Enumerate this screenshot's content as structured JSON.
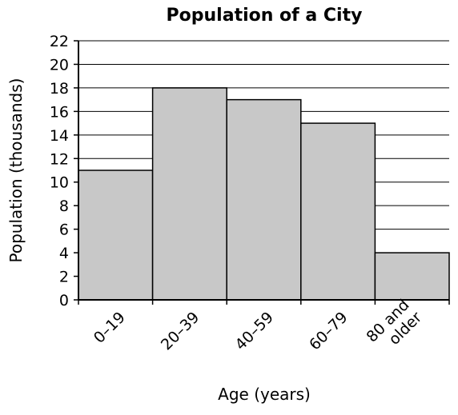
{
  "chart_data": {
    "type": "bar",
    "title": "Population of a City",
    "xlabel": "Age (years)",
    "ylabel": "Population (thousands)",
    "categories": [
      "0–19",
      "20–39",
      "40–59",
      "60–79",
      "80 and older"
    ],
    "category_lines": [
      [
        "0–19"
      ],
      [
        "20–39"
      ],
      [
        "40–59"
      ],
      [
        "60–79"
      ],
      [
        "80 and",
        "older"
      ]
    ],
    "values": [
      11,
      18,
      17,
      15,
      4
    ],
    "ylim": [
      0,
      22
    ],
    "yticks": [
      0,
      2,
      4,
      6,
      8,
      10,
      12,
      14,
      16,
      18,
      20,
      22
    ],
    "grid": true,
    "legend": "none",
    "bar_color": "#c8c8c8",
    "bar_edge_color": "#000000",
    "grid_color": "#000000"
  }
}
